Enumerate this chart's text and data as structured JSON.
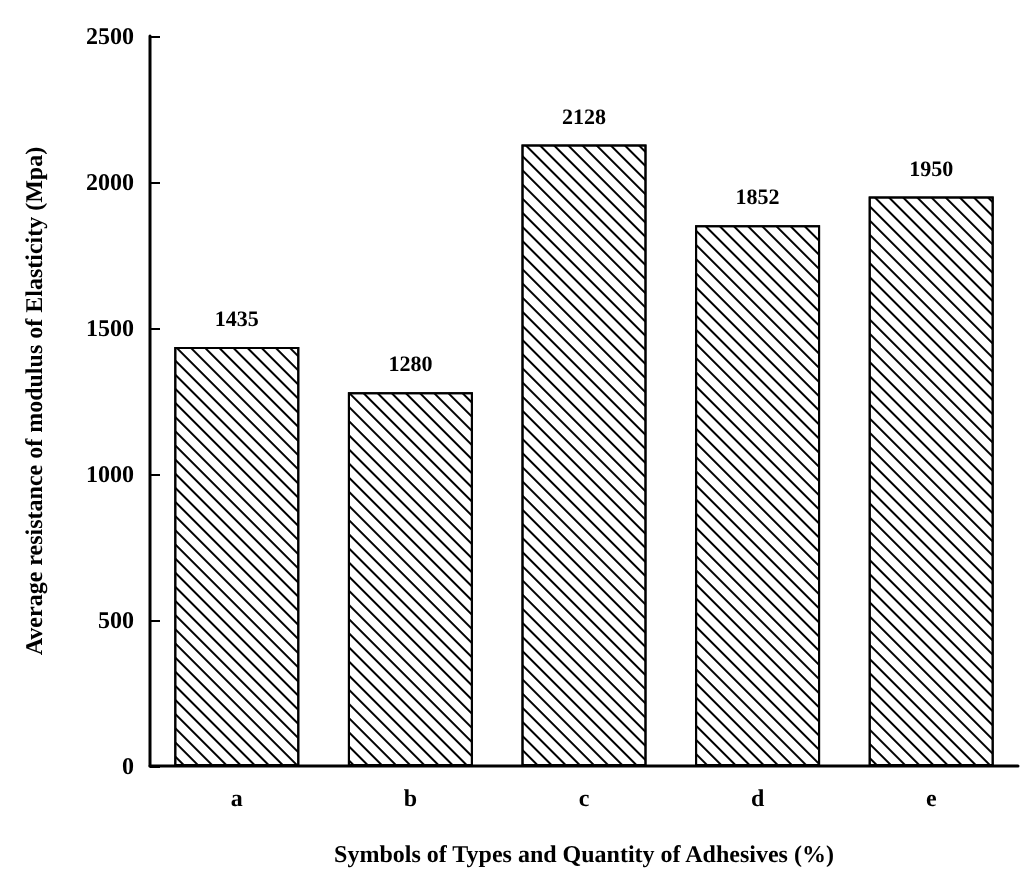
{
  "chart_data": {
    "type": "bar",
    "xlabel": "Symbols of Types and Quantity of Adhesives (%)",
    "ylabel": "Average resistance of modulus of Elasticity (Mpa)",
    "categories": [
      "a",
      "b",
      "c",
      "d",
      "e"
    ],
    "values": [
      1435,
      1280,
      2128,
      1852,
      1950
    ],
    "color": "#ffffff",
    "ylim": [
      0,
      2500
    ],
    "yticks": [
      0,
      500,
      1000,
      1500,
      2000,
      2500
    ],
    "grid": false,
    "data_labels": true
  }
}
